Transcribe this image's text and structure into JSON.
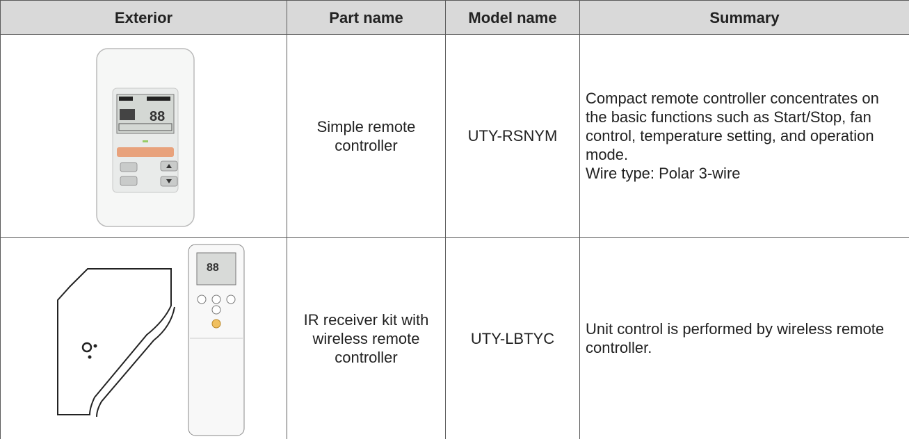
{
  "table": {
    "header": [
      "Exterior",
      "Part name",
      "Model name",
      "Summary"
    ],
    "rows": [
      {
        "part_name": "Simple remote controller",
        "model_name": "UTY-RSNYM",
        "summary": [
          "Compact remote controller concentrates on the basic functions such as Start/Stop, fan control, temperature setting, and operation mode.",
          "Wire type: Polar 3-wire"
        ]
      },
      {
        "part_name": "IR receiver kit with wireless remote controller",
        "model_name": "UTY-LBTYC",
        "summary": [
          "Unit control is performed by wireless remote controller."
        ]
      }
    ]
  }
}
